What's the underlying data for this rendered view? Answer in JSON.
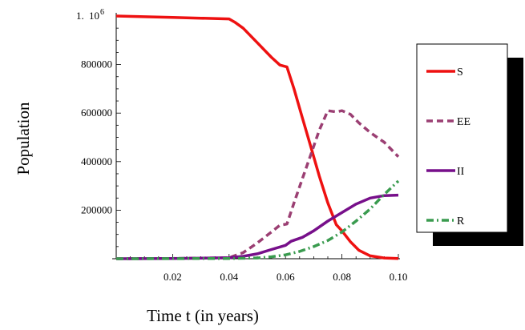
{
  "chart_data": {
    "type": "line",
    "xlabel": "Time t (in years)",
    "ylabel": "Population",
    "xlim": [
      0,
      0.1
    ],
    "ylim": [
      0,
      1000000
    ],
    "x_ticks": [
      {
        "value": 0.02,
        "label": "0.02"
      },
      {
        "value": 0.04,
        "label": "0.04"
      },
      {
        "value": 0.06,
        "label": "0.06"
      },
      {
        "value": 0.08,
        "label": "0.08"
      },
      {
        "value": 0.1,
        "label": "0.10"
      }
    ],
    "y_ticks": [
      {
        "value": 200000,
        "label": "200000"
      },
      {
        "value": 400000,
        "label": "400000"
      },
      {
        "value": 600000,
        "label": "600000"
      },
      {
        "value": 800000,
        "label": "800000"
      }
    ],
    "y_top_label": {
      "mantissa": "1.",
      "base": "10",
      "exponent": "6"
    },
    "grid": false,
    "legend_position": "right",
    "series": [
      {
        "name": "S",
        "color": "#ee1111",
        "dash": "solid",
        "points": [
          [
            0,
            1000000
          ],
          [
            0.01,
            997000
          ],
          [
            0.02,
            994000
          ],
          [
            0.03,
            991000
          ],
          [
            0.04,
            988000
          ],
          [
            0.042,
            975000
          ],
          [
            0.045,
            950000
          ],
          [
            0.05,
            890000
          ],
          [
            0.055,
            830000
          ],
          [
            0.058,
            798000
          ],
          [
            0.0605,
            790000
          ],
          [
            0.063,
            700000
          ],
          [
            0.066,
            580000
          ],
          [
            0.069,
            460000
          ],
          [
            0.072,
            340000
          ],
          [
            0.075,
            230000
          ],
          [
            0.078,
            140000
          ],
          [
            0.08,
            115000
          ],
          [
            0.083,
            70000
          ],
          [
            0.086,
            35000
          ],
          [
            0.09,
            12000
          ],
          [
            0.095,
            3000
          ],
          [
            0.1,
            1000
          ]
        ]
      },
      {
        "name": "EE",
        "color": "#9b3f73",
        "dash": "dashed",
        "points": [
          [
            0,
            0
          ],
          [
            0.02,
            1000
          ],
          [
            0.04,
            4000
          ],
          [
            0.045,
            25000
          ],
          [
            0.05,
            65000
          ],
          [
            0.055,
            110000
          ],
          [
            0.058,
            138000
          ],
          [
            0.0605,
            143000
          ],
          [
            0.063,
            230000
          ],
          [
            0.066,
            330000
          ],
          [
            0.069,
            430000
          ],
          [
            0.072,
            530000
          ],
          [
            0.075,
            610000
          ],
          [
            0.078,
            605000
          ],
          [
            0.08,
            610000
          ],
          [
            0.083,
            595000
          ],
          [
            0.086,
            560000
          ],
          [
            0.09,
            520000
          ],
          [
            0.095,
            480000
          ],
          [
            0.1,
            420000
          ]
        ]
      },
      {
        "name": "II",
        "color": "#770f8a",
        "dash": "solid",
        "points": [
          [
            0,
            0
          ],
          [
            0.02,
            1000
          ],
          [
            0.04,
            4000
          ],
          [
            0.045,
            10000
          ],
          [
            0.05,
            20000
          ],
          [
            0.055,
            38000
          ],
          [
            0.06,
            55000
          ],
          [
            0.062,
            72000
          ],
          [
            0.066,
            88000
          ],
          [
            0.07,
            115000
          ],
          [
            0.075,
            155000
          ],
          [
            0.08,
            190000
          ],
          [
            0.085,
            225000
          ],
          [
            0.09,
            250000
          ],
          [
            0.095,
            260000
          ],
          [
            0.1,
            262000
          ]
        ]
      },
      {
        "name": "R",
        "color": "#3a9b4f",
        "dash": "dashdot",
        "points": [
          [
            0,
            0
          ],
          [
            0.04,
            1000
          ],
          [
            0.05,
            3000
          ],
          [
            0.055,
            8000
          ],
          [
            0.06,
            16000
          ],
          [
            0.065,
            30000
          ],
          [
            0.07,
            50000
          ],
          [
            0.075,
            75000
          ],
          [
            0.08,
            110000
          ],
          [
            0.085,
            155000
          ],
          [
            0.09,
            205000
          ],
          [
            0.095,
            265000
          ],
          [
            0.1,
            320000
          ]
        ]
      }
    ]
  }
}
